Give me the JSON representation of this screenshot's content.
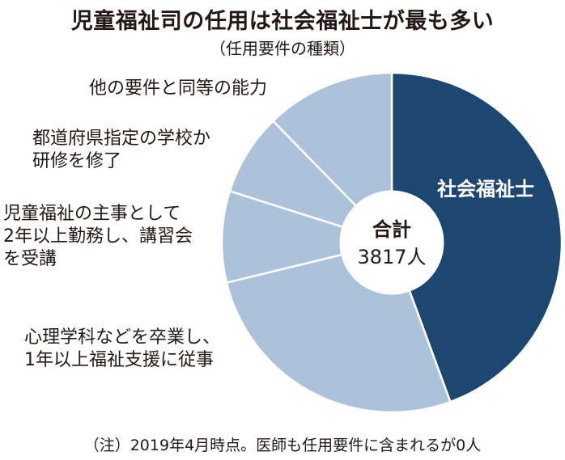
{
  "title": "児童福祉司の任用は社会福祉士が最も多い",
  "subtitle": "（任用要件の種類）",
  "note": "（注）2019年4月時点。医師も任用要件に含まれるが0人",
  "chart_data": {
    "type": "pie",
    "title": "児童福祉司の任用は社会福祉士が最も多い",
    "subtitle": "（任用要件の種類）",
    "total_label": "合計",
    "total_value": "3817人",
    "unit": "人",
    "slices": [
      {
        "label": "社会福祉士",
        "lines": [
          "社会福祉士"
        ],
        "share": 0.444,
        "color": "#1d4670"
      },
      {
        "label": "心理学科などを卒業し、1年以上福祉支援に従事",
        "lines": [
          "心理学科などを卒業し、",
          "1年以上福祉支援に従事"
        ],
        "share": 0.268,
        "color": "#abc2da"
      },
      {
        "label": "児童福祉の主事として2年以上勤務し、講習会を受講",
        "lines": [
          "児童福祉の主事として",
          "2年以上勤務し、講習会",
          "を受講"
        ],
        "share": 0.087,
        "color": "#abc2da"
      },
      {
        "label": "都道府県指定の学校か研修を修了",
        "lines": [
          "都道府県指定の学校か",
          "研修を修了"
        ],
        "share": 0.078,
        "color": "#abc2da"
      },
      {
        "label": "他の要件と同等の能力",
        "lines": [
          "他の要件と同等の能力"
        ],
        "share": 0.123,
        "color": "#abc2da"
      }
    ]
  }
}
